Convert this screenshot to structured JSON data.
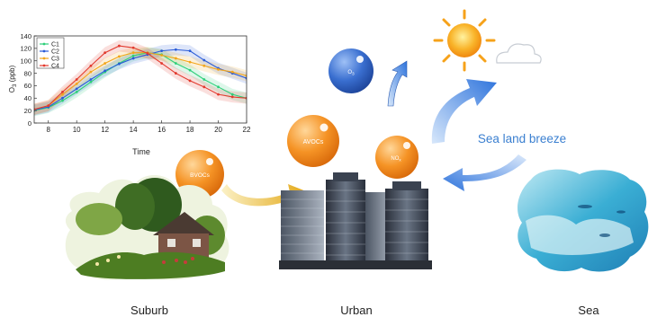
{
  "chart_data": {
    "type": "line",
    "xlabel": "Time",
    "ylabel": "O3 (ppb)",
    "ylabel_main": "O",
    "ylabel_sub": "3",
    "ylabel_rest": " (ppb)",
    "xlim": [
      7,
      22
    ],
    "ylim": [
      0,
      140
    ],
    "xticks": [
      8,
      10,
      12,
      14,
      16,
      18,
      20,
      22
    ],
    "yticks": [
      0,
      20,
      40,
      60,
      80,
      100,
      120,
      140
    ],
    "grid": false,
    "legend_position": "top-left",
    "x": [
      7,
      8,
      9,
      10,
      11,
      12,
      13,
      14,
      15,
      16,
      17,
      18,
      19,
      20,
      21,
      22
    ],
    "series": [
      {
        "name": "C1",
        "color": "#2ecf7a",
        "values": [
          20,
          25,
          36,
          50,
          66,
          82,
          96,
          108,
          113,
          110,
          96,
          85,
          70,
          58,
          46,
          40
        ]
      },
      {
        "name": "C2",
        "color": "#2a5bd7",
        "values": [
          21,
          26,
          40,
          55,
          70,
          84,
          95,
          104,
          110,
          116,
          118,
          116,
          101,
          88,
          80,
          72
        ]
      },
      {
        "name": "C3",
        "color": "#f2a51a",
        "values": [
          22,
          28,
          46,
          63,
          82,
          96,
          107,
          113,
          113,
          109,
          104,
          98,
          92,
          86,
          82,
          76
        ]
      },
      {
        "name": "C4",
        "color": "#e23a2e",
        "values": [
          22,
          28,
          50,
          70,
          92,
          113,
          124,
          121,
          112,
          96,
          80,
          68,
          58,
          46,
          42,
          40
        ]
      }
    ]
  },
  "bubbles": {
    "o3": {
      "main": "O",
      "sub": "3"
    },
    "avocs": "AVOCs",
    "nox": {
      "main": "NO",
      "sub": "x"
    },
    "bvocs": "BVOCs"
  },
  "labels": {
    "suburb": "Suburb",
    "urban": "Urban",
    "sea": "Sea",
    "sea_land_breeze": "Sea land breeze"
  },
  "colors": {
    "bubble_blue": "#2b5fc0",
    "bubble_orange": "#f08a12",
    "arrow_blue": "#3a7fe0",
    "arrow_gold": "#e8b41a",
    "breeze_text": "#3a7fd0",
    "sun": "#f6a21a"
  }
}
